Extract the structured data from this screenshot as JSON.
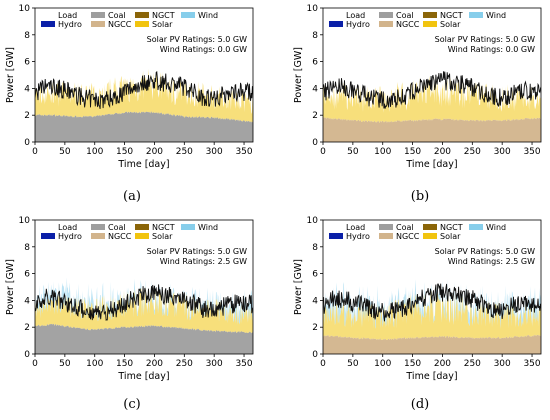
{
  "legend": {
    "entries": [
      {
        "label": "Load",
        "color": "#ffffff"
      },
      {
        "label": "Coal",
        "color": "#9e9e9e"
      },
      {
        "label": "NGCT",
        "color": "#8b6508"
      },
      {
        "label": "Wind",
        "color": "#87ceeb"
      },
      {
        "label": "Hydro",
        "color": "#0a1fa8"
      },
      {
        "label": "NGCC",
        "color": "#d2b48c"
      },
      {
        "label": "Solar",
        "color": "#f1c40f"
      }
    ]
  },
  "chart_data": [
    {
      "type": "area",
      "panel": "a",
      "caption": "(a)",
      "ylabel": "Power [GW]",
      "xlabel": "Time [day]",
      "xlim": [
        0,
        365
      ],
      "ylim": [
        0,
        10
      ],
      "xticks": [
        0,
        50,
        100,
        150,
        200,
        250,
        300,
        350
      ],
      "yticks": [
        0,
        2,
        4,
        6,
        8,
        10
      ],
      "annotations": [
        "Solar PV Ratings: 5.0 GW",
        "Wind Ratings: 0.0 GW"
      ],
      "series": [
        {
          "name": "Coal",
          "x": [
            0,
            30,
            60,
            100,
            150,
            200,
            250,
            300,
            365
          ],
          "values": [
            2.0,
            2.0,
            1.9,
            1.9,
            2.2,
            2.2,
            1.9,
            1.8,
            1.5
          ]
        },
        {
          "name": "Solar",
          "x": [
            0,
            50,
            100,
            150,
            200,
            250,
            300,
            365
          ],
          "values": [
            1.5,
            1.7,
            1.6,
            1.8,
            2.1,
            1.8,
            1.6,
            1.4
          ]
        },
        {
          "name": "Load",
          "x": [
            0,
            20,
            40,
            60,
            80,
            100,
            120,
            140,
            160,
            180,
            200,
            220,
            240,
            260,
            280,
            300,
            320,
            340,
            365
          ],
          "values": [
            3.6,
            4.2,
            4.0,
            3.7,
            3.3,
            3.1,
            3.2,
            3.5,
            4.0,
            4.4,
            4.6,
            4.4,
            4.3,
            3.9,
            3.4,
            3.3,
            3.6,
            3.8,
            3.7
          ]
        }
      ]
    },
    {
      "type": "area",
      "panel": "b",
      "caption": "(b)",
      "ylabel": "Power [GW]",
      "xlabel": "Time [day]",
      "xlim": [
        0,
        365
      ],
      "ylim": [
        0,
        10
      ],
      "xticks": [
        0,
        50,
        100,
        150,
        200,
        250,
        300,
        350
      ],
      "yticks": [
        0,
        2,
        4,
        6,
        8,
        10
      ],
      "annotations": [
        "Solar PV Ratings: 5.0 GW",
        "Wind Ratings: 0.0 GW"
      ],
      "series": [
        {
          "name": "NGCC",
          "x": [
            0,
            50,
            100,
            150,
            200,
            250,
            300,
            365
          ],
          "values": [
            1.8,
            1.6,
            1.5,
            1.6,
            1.7,
            1.6,
            1.6,
            1.8
          ]
        },
        {
          "name": "Solar",
          "x": [
            0,
            50,
            100,
            150,
            200,
            250,
            300,
            365
          ],
          "values": [
            1.6,
            1.8,
            1.7,
            2.0,
            2.2,
            1.9,
            1.7,
            1.5
          ]
        },
        {
          "name": "Load",
          "x": [
            0,
            20,
            40,
            60,
            80,
            100,
            120,
            140,
            160,
            180,
            200,
            220,
            240,
            260,
            280,
            300,
            320,
            340,
            365
          ],
          "values": [
            3.6,
            4.2,
            4.0,
            3.7,
            3.3,
            3.1,
            3.2,
            3.5,
            4.0,
            4.4,
            4.6,
            4.4,
            4.3,
            3.9,
            3.4,
            3.3,
            3.6,
            3.8,
            3.7
          ]
        }
      ]
    },
    {
      "type": "area",
      "panel": "c",
      "caption": "(c)",
      "ylabel": "Power [GW]",
      "xlabel": "Time [day]",
      "xlim": [
        0,
        365
      ],
      "ylim": [
        0,
        10
      ],
      "xticks": [
        0,
        50,
        100,
        150,
        200,
        250,
        300,
        350
      ],
      "yticks": [
        0,
        2,
        4,
        6,
        8,
        10
      ],
      "annotations": [
        "Solar PV Ratings: 5.0 GW",
        "Wind Ratings: 2.5 GW"
      ],
      "series": [
        {
          "name": "Coal",
          "x": [
            0,
            30,
            60,
            100,
            150,
            200,
            250,
            300,
            365
          ],
          "values": [
            2.1,
            2.2,
            2.0,
            1.8,
            2.0,
            2.1,
            1.9,
            1.7,
            1.6
          ]
        },
        {
          "name": "Solar",
          "x": [
            0,
            50,
            100,
            150,
            200,
            250,
            300,
            365
          ],
          "values": [
            1.3,
            1.5,
            1.5,
            1.7,
            1.9,
            1.7,
            1.5,
            1.2
          ]
        },
        {
          "name": "Wind",
          "x": [
            0,
            50,
            100,
            150,
            200,
            250,
            300,
            365
          ],
          "values": [
            0.6,
            0.7,
            0.5,
            0.4,
            0.3,
            0.4,
            0.5,
            0.7
          ]
        },
        {
          "name": "Load",
          "x": [
            0,
            20,
            40,
            60,
            80,
            100,
            120,
            140,
            160,
            180,
            200,
            220,
            240,
            260,
            280,
            300,
            320,
            340,
            365
          ],
          "values": [
            3.6,
            4.2,
            4.0,
            3.7,
            3.3,
            3.1,
            3.2,
            3.5,
            4.0,
            4.4,
            4.6,
            4.4,
            4.3,
            3.9,
            3.4,
            3.3,
            3.6,
            3.8,
            3.7
          ]
        }
      ]
    },
    {
      "type": "area",
      "panel": "d",
      "caption": "(d)",
      "ylabel": "Power [GW]",
      "xlabel": "Time [day]",
      "xlim": [
        0,
        365
      ],
      "ylim": [
        0,
        10
      ],
      "xticks": [
        0,
        50,
        100,
        150,
        200,
        250,
        300,
        350
      ],
      "yticks": [
        0,
        2,
        4,
        6,
        8,
        10
      ],
      "annotations": [
        "Solar PV Ratings: 5.0 GW",
        "Wind Ratings: 2.5 GW"
      ],
      "series": [
        {
          "name": "NGCC",
          "x": [
            0,
            50,
            100,
            150,
            200,
            250,
            300,
            365
          ],
          "values": [
            1.4,
            1.2,
            1.1,
            1.2,
            1.3,
            1.2,
            1.2,
            1.4
          ]
        },
        {
          "name": "Solar",
          "x": [
            0,
            50,
            100,
            150,
            200,
            250,
            300,
            365
          ],
          "values": [
            1.6,
            1.8,
            1.8,
            2.1,
            2.3,
            2.0,
            1.7,
            1.5
          ]
        },
        {
          "name": "Wind",
          "x": [
            0,
            50,
            100,
            150,
            200,
            250,
            300,
            365
          ],
          "values": [
            0.7,
            0.8,
            0.6,
            0.5,
            0.4,
            0.5,
            0.6,
            0.8
          ]
        },
        {
          "name": "Load",
          "x": [
            0,
            20,
            40,
            60,
            80,
            100,
            120,
            140,
            160,
            180,
            200,
            220,
            240,
            260,
            280,
            300,
            320,
            340,
            365
          ],
          "values": [
            3.6,
            4.2,
            4.0,
            3.7,
            3.3,
            3.1,
            3.2,
            3.5,
            4.0,
            4.4,
            4.6,
            4.4,
            4.3,
            3.9,
            3.4,
            3.3,
            3.6,
            3.8,
            3.7
          ]
        }
      ]
    }
  ]
}
